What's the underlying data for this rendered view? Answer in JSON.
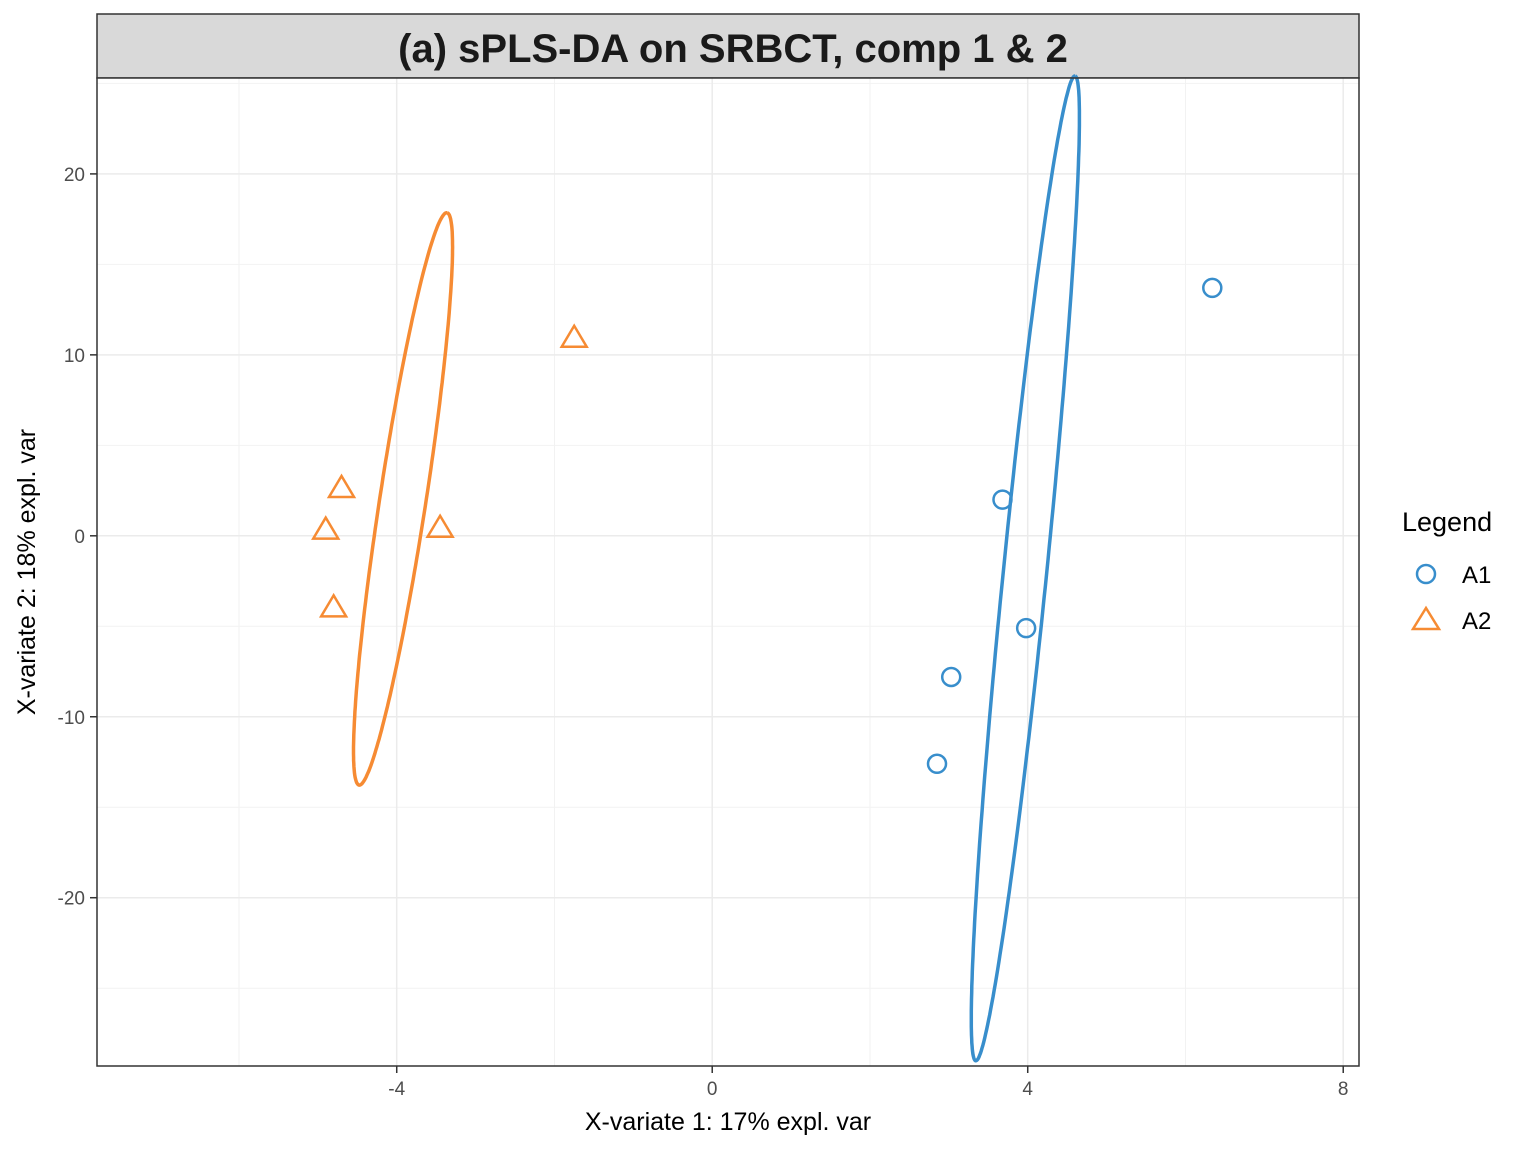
{
  "chart_data": {
    "type": "scatter",
    "title": "(a) sPLS-DA on SRBCT, comp 1 & 2",
    "xlabel": "X-variate 1: 17% expl. var",
    "ylabel": "X-variate 2: 18% expl. var",
    "xlim": [
      -7.8,
      8.2
    ],
    "ylim": [
      -29.3,
      25.3
    ],
    "x_ticks": [
      -4,
      0,
      4,
      8
    ],
    "x_tick_labels": [
      "-4",
      "0",
      "4",
      "8"
    ],
    "y_ticks": [
      -20,
      -10,
      0,
      10,
      20
    ],
    "y_tick_labels": [
      "-20",
      "-10",
      "0",
      "10",
      "20"
    ],
    "grid": true,
    "legend": {
      "title": "Legend",
      "position": "right"
    },
    "series": [
      {
        "name": "A1",
        "marker": "circle",
        "color": "#388ECC",
        "points": [
          {
            "x": 6.34,
            "y": 13.7
          },
          {
            "x": 3.68,
            "y": 2.0
          },
          {
            "x": 3.98,
            "y": -5.1
          },
          {
            "x": 3.03,
            "y": -7.8
          },
          {
            "x": 2.85,
            "y": -12.6
          }
        ],
        "ellipse": {
          "cx": 3.97,
          "cy": -1.8,
          "a": 27.5,
          "b": 1.72,
          "angle_deg": 81.7
        }
      },
      {
        "name": "A2",
        "marker": "triangle",
        "color": "#F68B33",
        "points": [
          {
            "x": -1.75,
            "y": 11.0
          },
          {
            "x": -4.7,
            "y": 2.7
          },
          {
            "x": -4.9,
            "y": 0.4
          },
          {
            "x": -3.45,
            "y": 0.5
          },
          {
            "x": -4.8,
            "y": -3.9
          }
        ],
        "ellipse": {
          "cx": -3.92,
          "cy": 2.04,
          "a": 16.2,
          "b": 1.82,
          "angle_deg": 77.4
        }
      }
    ]
  }
}
